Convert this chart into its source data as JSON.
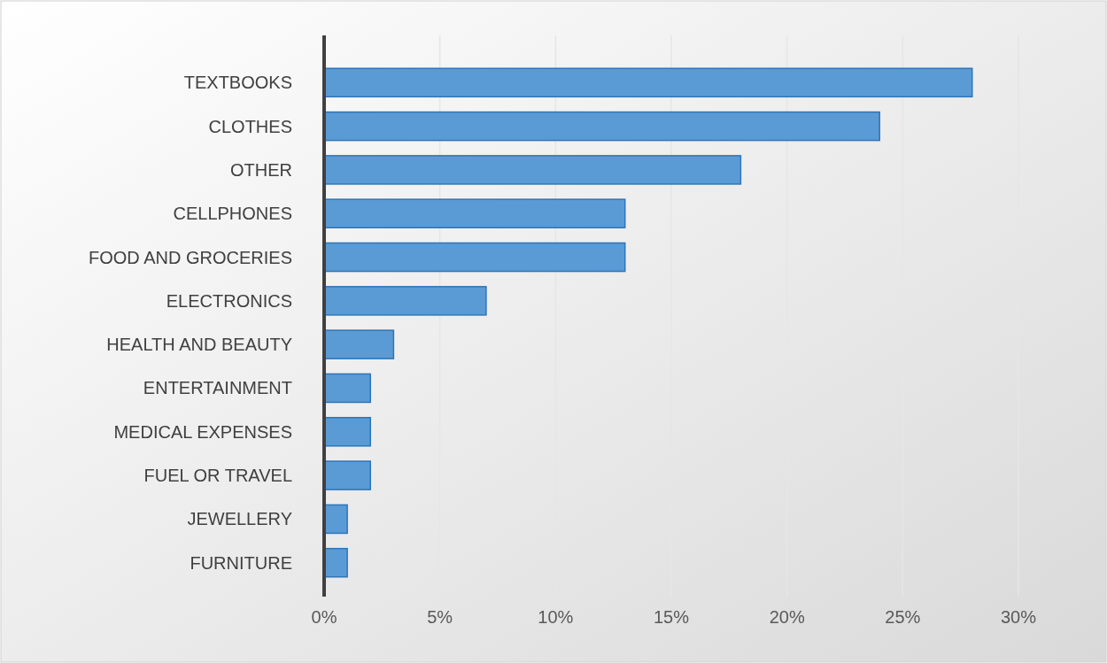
{
  "chart_data": {
    "type": "bar",
    "orientation": "horizontal",
    "categories": [
      "TEXTBOOKS",
      "CLOTHES",
      "OTHER",
      "CELLPHONES",
      "FOOD AND GROCERIES",
      "ELECTRONICS",
      "HEALTH AND BEAUTY",
      "ENTERTAINMENT",
      "MEDICAL EXPENSES",
      "FUEL OR TRAVEL",
      "JEWELLERY",
      "FURNITURE"
    ],
    "values": [
      28,
      24,
      18,
      13,
      13,
      7,
      3,
      2,
      2,
      2,
      1,
      1
    ],
    "color": "#5b9bd5",
    "xlim": [
      0,
      30
    ],
    "xticks": [
      {
        "value": 0,
        "label": "0%"
      },
      {
        "value": 5,
        "label": "5%"
      },
      {
        "value": 10,
        "label": "10%"
      },
      {
        "value": 15,
        "label": "15%"
      },
      {
        "value": 20,
        "label": "20%"
      },
      {
        "value": 25,
        "label": "25%"
      },
      {
        "value": 30,
        "label": "30%"
      }
    ],
    "grid": "x"
  }
}
